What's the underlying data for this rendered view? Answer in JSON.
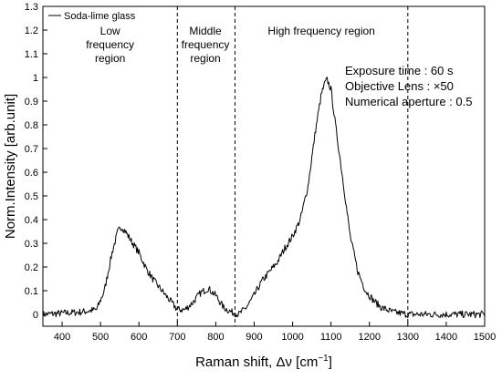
{
  "chart_data": {
    "type": "line",
    "xlabel": "Raman shift, Δν [cm",
    "xlabel_sup": "−1",
    "xlabel_end": "]",
    "ylabel": "Norm.Intensity [arb.unit]",
    "xlim": [
      350,
      1500
    ],
    "ylim": [
      -0.05,
      1.3
    ],
    "xticks": [
      400,
      500,
      600,
      700,
      800,
      900,
      1000,
      1100,
      1200,
      1300,
      1400,
      1500
    ],
    "yticks": [
      0,
      0.1,
      0.2,
      0.3,
      0.4,
      0.5,
      0.6,
      0.7,
      0.8,
      0.9,
      1,
      1.1,
      1.2,
      1.3
    ],
    "ytick_labels": [
      "0",
      "0.1",
      "0.2",
      "0.3",
      "0.4",
      "0.5",
      "0.6",
      "0.7",
      "0.8",
      "0.9",
      "1",
      "1.1",
      "1.2",
      "1.3"
    ],
    "grid": false,
    "legend_position": "top-left",
    "dividers": [
      700,
      850,
      1300
    ],
    "regions": [
      {
        "lines": [
          "Low",
          "frequency",
          "region"
        ],
        "x": 525,
        "y": 1.18
      },
      {
        "lines": [
          "Middle",
          "frequency",
          "region"
        ],
        "x": 773,
        "y": 1.18
      },
      {
        "lines": [
          "High frequency region"
        ],
        "x": 1075,
        "y": 1.18
      }
    ],
    "annotations": [
      "Exposure time : 60 s",
      "Objective Lens : ×50",
      "Numerical aperture : 0.5"
    ],
    "series": [
      {
        "name": "Soda-lime glass",
        "color": "#000000",
        "x": [
          350,
          400,
          450,
          490,
          510,
          530,
          545,
          555,
          565,
          580,
          600,
          620,
          640,
          660,
          680,
          700,
          720,
          740,
          760,
          780,
          800,
          820,
          840,
          860,
          880,
          900,
          920,
          940,
          960,
          980,
          1000,
          1020,
          1040,
          1060,
          1075,
          1085,
          1090,
          1100,
          1110,
          1130,
          1150,
          1170,
          1190,
          1210,
          1230,
          1260,
          1300,
          1350,
          1400,
          1450,
          1500
        ],
        "y": [
          0.0,
          0.005,
          0.01,
          0.02,
          0.1,
          0.26,
          0.35,
          0.37,
          0.35,
          0.31,
          0.26,
          0.19,
          0.14,
          0.1,
          0.06,
          0.02,
          0.02,
          0.05,
          0.09,
          0.11,
          0.08,
          0.03,
          0.01,
          0.0,
          0.03,
          0.08,
          0.14,
          0.18,
          0.22,
          0.28,
          0.33,
          0.4,
          0.54,
          0.78,
          0.93,
          0.98,
          0.99,
          0.95,
          0.82,
          0.58,
          0.33,
          0.18,
          0.1,
          0.06,
          0.03,
          0.01,
          0.0,
          0.0,
          0.0,
          0.0,
          0.0
        ]
      }
    ]
  }
}
